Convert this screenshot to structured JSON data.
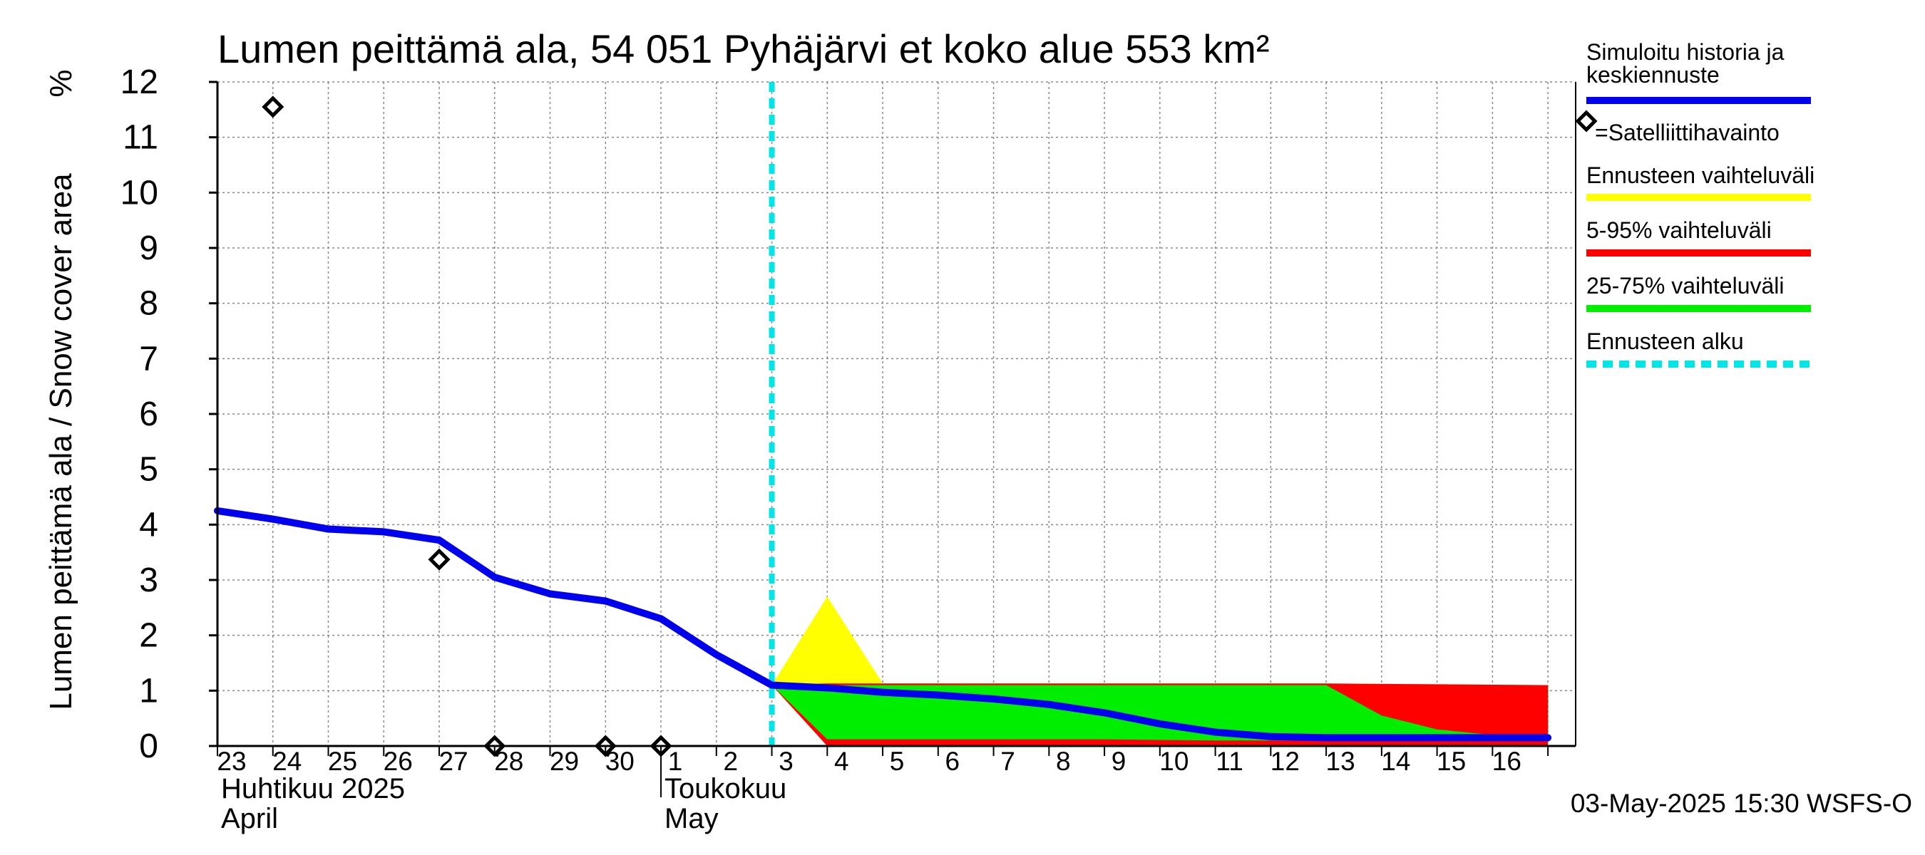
{
  "chart_data": {
    "type": "area",
    "title": "Lumen peittämä ala, 54 051 Pyhäjärvi et koko alue 553 km²",
    "ylabel": "Lumen peittämä ala / Snow cover area",
    "yunit": "%",
    "ylim": [
      0,
      12
    ],
    "yticks": [
      "0",
      "1",
      "2",
      "3",
      "4",
      "5",
      "6",
      "7",
      "8",
      "9",
      "10",
      "11",
      "12"
    ],
    "x_day_labels": [
      "23",
      "24",
      "25",
      "26",
      "27",
      "28",
      "29",
      "30",
      "1",
      "2",
      "3",
      "4",
      "5",
      "6",
      "7",
      "8",
      "9",
      "10",
      "11",
      "12",
      "13",
      "14",
      "15",
      "16"
    ],
    "month_labels": [
      {
        "fi": "Huhtikuu  2025",
        "en": "April",
        "start_index": 0
      },
      {
        "fi": "Toukokuu",
        "en": "May",
        "start_index": 8
      }
    ],
    "grid": true,
    "forecast_start_day_index": 10,
    "series": [
      {
        "name": "Simuloitu historia ja keskiennuste",
        "color": "#0000ee",
        "style": "line",
        "x": [
          0,
          1,
          2,
          3,
          4,
          5,
          6,
          7,
          8,
          9,
          10,
          11,
          12,
          13,
          14,
          15,
          16,
          17,
          18,
          19,
          20,
          21,
          22,
          23,
          24
        ],
        "y": [
          4.25,
          4.1,
          3.92,
          3.87,
          3.72,
          3.05,
          2.75,
          2.62,
          2.3,
          1.65,
          1.1,
          1.05,
          0.97,
          0.92,
          0.85,
          0.75,
          0.6,
          0.4,
          0.25,
          0.17,
          0.15,
          0.15,
          0.15,
          0.15,
          0.15
        ]
      },
      {
        "name": "Satelliittihavainto",
        "style": "marker",
        "x": [
          1,
          4,
          5,
          7,
          8
        ],
        "y": [
          11.55,
          3.37,
          0,
          0,
          0
        ]
      },
      {
        "name": "Ennusteen vaihteluväli",
        "color": "#ffff00",
        "style": "band",
        "x": [
          10,
          11,
          12,
          13,
          20,
          24
        ],
        "upper": [
          1.1,
          2.7,
          1.13,
          1.13,
          1.13,
          1.1
        ],
        "lower": [
          1.1,
          0,
          0,
          0,
          0,
          0
        ]
      },
      {
        "name": "5-95% vaihteluväli",
        "color": "#ff0000",
        "style": "band",
        "x": [
          10,
          11,
          12,
          20,
          24
        ],
        "upper": [
          1.1,
          1.13,
          1.13,
          1.13,
          1.1
        ],
        "lower": [
          1.1,
          0,
          0,
          0,
          0
        ]
      },
      {
        "name": "25-75% vaihteluväli",
        "color": "#00ee00",
        "style": "band",
        "x": [
          10,
          11,
          12,
          16,
          18,
          20,
          21,
          22,
          23,
          24
        ],
        "upper": [
          1.1,
          1.1,
          1.1,
          1.1,
          1.1,
          1.1,
          0.55,
          0.3,
          0.2,
          0.15
        ],
        "lower": [
          1.1,
          0.12,
          0.12,
          0.12,
          0.1,
          0.1,
          0.1,
          0.1,
          0.1,
          0.1
        ]
      },
      {
        "name": "Ennusteen alku",
        "color": "#00e5e5",
        "style": "vline",
        "x": 10
      }
    ],
    "legend": {
      "position": "right",
      "entries": [
        {
          "label": "Simuloitu historia ja keskiennuste",
          "color": "#0000ee",
          "kind": "line"
        },
        {
          "label": "=Satelliittihavainto",
          "kind": "marker"
        },
        {
          "label": "Ennusteen vaihteluväli",
          "color": "#ffff00",
          "kind": "line"
        },
        {
          "label": "5-95% vaihteluväli",
          "color": "#ff0000",
          "kind": "line"
        },
        {
          "label": "25-75% vaihteluväli",
          "color": "#00ee00",
          "kind": "line"
        },
        {
          "label": "Ennusteen alku",
          "color": "#00e5e5",
          "kind": "dashed"
        }
      ]
    },
    "footer": "03-May-2025 15:30 WSFS-O"
  }
}
